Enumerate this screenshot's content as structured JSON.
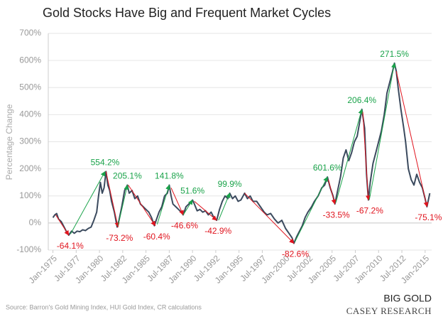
{
  "chart_data": {
    "type": "line",
    "title": "Gold Stocks Have Big and Frequent Market Cycles",
    "y_label": "Percentage Change",
    "x": [
      1975.0,
      1975.2,
      1975.4,
      1975.6,
      1975.9,
      1976.2,
      1976.5,
      1976.7,
      1977.0,
      1977.3,
      1977.6,
      1977.9,
      1978.2,
      1978.5,
      1978.8,
      1979.1,
      1979.4,
      1979.7,
      1979.9,
      1980.1,
      1980.3,
      1980.5,
      1980.7,
      1980.9,
      1981.1,
      1981.3,
      1981.6,
      1981.9,
      1982.1,
      1982.4,
      1982.7,
      1983.0,
      1983.2,
      1983.5,
      1983.8,
      1984.1,
      1984.4,
      1984.7,
      1985.0,
      1985.3,
      1985.6,
      1985.9,
      1986.1,
      1986.4,
      1986.7,
      1987.0,
      1987.3,
      1987.5,
      1987.7,
      1987.9,
      1988.2,
      1988.5,
      1988.8,
      1989.0,
      1989.3,
      1989.6,
      1990.0,
      1990.2,
      1990.5,
      1990.8,
      1991.1,
      1991.4,
      1991.7,
      1992.0,
      1992.3,
      1992.6,
      1992.9,
      1993.2,
      1993.5,
      1993.8,
      1994.0,
      1994.3,
      1994.6,
      1994.9,
      1995.2,
      1995.6,
      1995.9,
      1996.2,
      1996.5,
      1996.9,
      1997.3,
      1997.7,
      1998.0,
      1998.4,
      1998.8,
      1999.2,
      1999.6,
      2000.0,
      2000.4,
      2000.7,
      2000.9,
      2001.2,
      2001.5,
      2001.8,
      2002.1,
      2002.4,
      2002.8,
      2003.1,
      2003.5,
      2003.9,
      2004.2,
      2004.5,
      2004.8,
      2005.1,
      2005.3,
      2005.6,
      2005.9,
      2006.2,
      2006.5,
      2006.8,
      2007.1,
      2007.4,
      2007.7,
      2008.0,
      2008.2,
      2008.5,
      2008.7,
      2008.9,
      2009.1,
      2009.4,
      2009.7,
      2010.0,
      2010.3,
      2010.6,
      2010.9,
      2011.2,
      2011.5,
      2011.7,
      2011.9,
      2012.1,
      2012.4,
      2012.7,
      2012.9,
      2013.2,
      2013.5,
      2013.8,
      2014.1,
      2014.4,
      2014.7,
      2015.0,
      2015.2,
      2015.5
    ],
    "series": [
      {
        "color": "#3b4a5e",
        "values": [
          20,
          30,
          35,
          15,
          5,
          -15,
          -35,
          -45,
          -30,
          -38,
          -30,
          -32,
          -25,
          -28,
          -20,
          -15,
          10,
          40,
          100,
          150,
          110,
          130,
          190,
          140,
          120,
          80,
          40,
          -15,
          10,
          60,
          120,
          140,
          110,
          120,
          90,
          100,
          70,
          60,
          50,
          40,
          20,
          -10,
          10,
          40,
          60,
          100,
          110,
          140,
          100,
          70,
          60,
          50,
          40,
          30,
          60,
          70,
          85,
          70,
          45,
          50,
          40,
          45,
          30,
          40,
          20,
          10,
          50,
          80,
          100,
          90,
          110,
          90,
          100,
          80,
          85,
          110,
          90,
          100,
          80,
          80,
          60,
          40,
          30,
          35,
          15,
          0,
          10,
          -20,
          -40,
          -55,
          -75,
          -50,
          -30,
          -10,
          20,
          40,
          60,
          80,
          100,
          130,
          140,
          170,
          130,
          100,
          70,
          120,
          170,
          240,
          270,
          230,
          260,
          300,
          320,
          380,
          420,
          350,
          180,
          85,
          150,
          220,
          260,
          300,
          340,
          400,
          480,
          520,
          560,
          590,
          560,
          500,
          420,
          350,
          300,
          200,
          160,
          140,
          180,
          150,
          130,
          90,
          60,
          110
        ]
      }
    ],
    "xlim": [
      1974.5,
      2015.7
    ],
    "xticks": [
      {
        "value": 1975,
        "label": "Jan-1975"
      },
      {
        "value": 1977.5,
        "label": "Jul-1977"
      },
      {
        "value": 1980,
        "label": "Jan-1980"
      },
      {
        "value": 1982.5,
        "label": "Jul-1982"
      },
      {
        "value": 1985,
        "label": "Jan-1985"
      },
      {
        "value": 1987.5,
        "label": "Jul-1987"
      },
      {
        "value": 1990,
        "label": "Jan-1990"
      },
      {
        "value": 1992.5,
        "label": "Jul-1992"
      },
      {
        "value": 1995,
        "label": "Jan-1995"
      },
      {
        "value": 1997.5,
        "label": "Jul-1997"
      },
      {
        "value": 2000,
        "label": "Jan-2000"
      },
      {
        "value": 2002.5,
        "label": "Jul-2002"
      },
      {
        "value": 2005,
        "label": "Jan-2005"
      },
      {
        "value": 2007.5,
        "label": "Jul-2007"
      },
      {
        "value": 2010,
        "label": "Jan-2010"
      },
      {
        "value": 2012.5,
        "label": "Jul-2012"
      },
      {
        "value": 2015,
        "label": "Jan-2015"
      }
    ],
    "ylim": [
      -100,
      700
    ],
    "yticks": [
      {
        "value": -100,
        "label": "-100%"
      },
      {
        "value": 0,
        "label": "0%"
      },
      {
        "value": 100,
        "label": "100%"
      },
      {
        "value": 200,
        "label": "200%"
      },
      {
        "value": 300,
        "label": "300%"
      },
      {
        "value": 400,
        "label": "400%"
      },
      {
        "value": 500,
        "label": "500%"
      },
      {
        "value": 600,
        "label": "600%"
      },
      {
        "value": 700,
        "label": "700%"
      }
    ],
    "grid": true,
    "up_color": "#1aa34a",
    "down_color": "#e0141e",
    "annotations": [
      {
        "label": "-64.1%",
        "start": [
          1975.3,
          30
        ],
        "end": [
          1976.7,
          -45
        ]
      },
      {
        "label": "554.2%",
        "start": [
          1976.9,
          -40
        ],
        "end": [
          1980.6,
          190
        ]
      },
      {
        "label": "-73.2%",
        "start": [
          1980.7,
          190
        ],
        "end": [
          1982.0,
          -15
        ]
      },
      {
        "label": "205.1%",
        "start": [
          1982.0,
          -10
        ],
        "end": [
          1983.0,
          140
        ]
      },
      {
        "label": "-60.4%",
        "start": [
          1983.1,
          140
        ],
        "end": [
          1986.0,
          -10
        ]
      },
      {
        "label": "141.8%",
        "start": [
          1986.2,
          -5
        ],
        "end": [
          1987.5,
          140
        ]
      },
      {
        "label": "-46.6%",
        "start": [
          1987.7,
          130
        ],
        "end": [
          1989.0,
          30
        ]
      },
      {
        "label": "51.6%",
        "start": [
          1989.0,
          30
        ],
        "end": [
          1990.0,
          85
        ]
      },
      {
        "label": "-42.9%",
        "start": [
          1990.2,
          80
        ],
        "end": [
          1992.6,
          10
        ]
      },
      {
        "label": "99.9%",
        "start": [
          1992.8,
          10
        ],
        "end": [
          1994.0,
          110
        ]
      },
      {
        "label": "-82.6%",
        "start": [
          1995.6,
          110
        ],
        "end": [
          2000.9,
          -75
        ]
      },
      {
        "label": "601.6%",
        "start": [
          2001.0,
          -70
        ],
        "end": [
          2004.5,
          170
        ]
      },
      {
        "label": "-33.5%",
        "start": [
          2004.6,
          160
        ],
        "end": [
          2005.3,
          70
        ]
      },
      {
        "label": "206.4%",
        "start": [
          2005.4,
          75
        ],
        "end": [
          2008.2,
          420
        ]
      },
      {
        "label": "-67.2%",
        "start": [
          2008.3,
          410
        ],
        "end": [
          2008.9,
          85
        ]
      },
      {
        "label": "271.5%",
        "start": [
          2009.0,
          85
        ],
        "end": [
          2011.7,
          590
        ]
      },
      {
        "label": "-75.1%",
        "start": [
          2011.9,
          560
        ],
        "end": [
          2015.2,
          60
        ]
      }
    ]
  },
  "source": "Source: Barron's Gold Mining Index, HUI Gold Index, CR calculations",
  "brand": "BIG GOLD",
  "publisher": "CASEY RESEARCH"
}
